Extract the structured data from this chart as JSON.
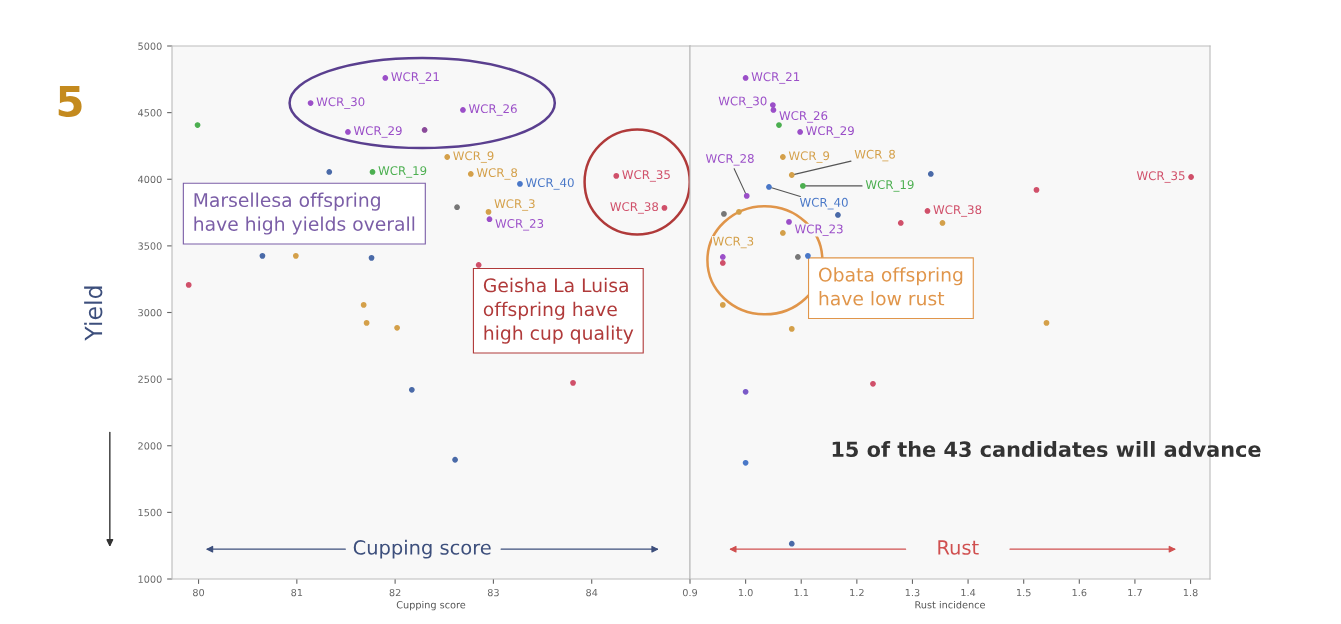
{
  "chart_data": [
    {
      "type": "scatter",
      "xlabel": "Cupping score",
      "ylabel": "Yield",
      "xlim": [
        79.73,
        85.0
      ],
      "xticks": [
        80,
        81,
        82,
        83,
        84
      ],
      "ylim": [
        1000,
        5000
      ],
      "yticks": [
        1000,
        1500,
        2000,
        2500,
        3000,
        3500,
        4000,
        4500,
        5000
      ],
      "marker": "circle",
      "grid": false,
      "legend": false,
      "x": [
        81.9,
        81.14,
        82.69,
        81.52,
        82.3,
        82.53,
        81.77,
        81.33,
        82.77,
        83.27,
        82.95,
        82.96,
        84.25,
        84.74,
        82.63,
        79.99,
        80.65,
        80.99,
        81.76,
        79.9,
        82.85,
        81.68,
        81.71,
        82.02,
        82.17,
        82.61,
        83.81
      ],
      "values": [
        4760,
        4572,
        4520,
        4355,
        4370,
        4167,
        4055,
        4055,
        4040,
        3965,
        3755,
        3700,
        4025,
        3785,
        3790,
        4407,
        3425,
        3425,
        3410,
        3207,
        3357,
        3057,
        2922,
        2885,
        2420,
        1895,
        2472
      ],
      "colors": [
        "#9b4fc8",
        "#9b4fc8",
        "#9b4fc8",
        "#9b4fc8",
        "#8a4a9a",
        "#d4a04a",
        "#4caf50",
        "#4a6aa8",
        "#d4a04a",
        "#4a78c8",
        "#d4a04a",
        "#9b4fc8",
        "#d0506a",
        "#d0506a",
        "#777777",
        "#4caf50",
        "#4a6aa8",
        "#d4a04a",
        "#4a6aa8",
        "#d0506a",
        "#d0506a",
        "#d4a04a",
        "#d4a04a",
        "#d4a04a",
        "#4a6aa8",
        "#4a6aa8",
        "#d0506a"
      ],
      "annotations": [
        "5",
        "Marsellesa offspring\nhave high yields overall",
        "Geisha La Luisa\noffspring have\nhigh cup quality",
        "Cupping score",
        {
          "text": "WCR_21",
          "x": 81.9,
          "y": 4760
        },
        {
          "text": "WCR_30",
          "x": 81.14,
          "y": 4572
        },
        {
          "text": "WCR_26",
          "x": 82.69,
          "y": 4520
        },
        {
          "text": "WCR_29",
          "x": 81.52,
          "y": 4355
        },
        {
          "text": "WCR_9",
          "x": 82.53,
          "y": 4167
        },
        {
          "text": "WCR_19",
          "x": 81.77,
          "y": 4055
        },
        {
          "text": "WCR_8",
          "x": 82.77,
          "y": 4040
        },
        {
          "text": "WCR_40",
          "x": 83.27,
          "y": 3965
        },
        {
          "text": "WCR_3",
          "x": 82.95,
          "y": 3755
        },
        {
          "text": "WCR_23",
          "x": 82.96,
          "y": 3700
        },
        {
          "text": "WCR_35",
          "x": 84.25,
          "y": 4025
        },
        {
          "text": "WCR_38",
          "x": 84.74,
          "y": 3785
        }
      ]
    },
    {
      "type": "scatter",
      "xlabel": "Rust incidence",
      "xlim": [
        0.9,
        1.835
      ],
      "xticks": [
        {
          "value": 0.9,
          "label": "0.9"
        },
        {
          "value": 1.0,
          "label": "1.0"
        },
        {
          "value": 1.1,
          "label": "1.1"
        },
        {
          "value": 1.2,
          "label": "1.2"
        },
        {
          "value": 1.3,
          "label": "1.3"
        },
        {
          "value": 1.4,
          "label": "1.4"
        },
        {
          "value": 1.5,
          "label": "1.5"
        },
        {
          "value": 1.6,
          "label": "1.6"
        },
        {
          "value": 1.7,
          "label": "1.7"
        },
        {
          "value": 1.8,
          "label": "1.8"
        }
      ],
      "ylim": [
        1000,
        5000
      ],
      "tick_labels": "x",
      "marker": "circle",
      "grid": false,
      "legend": false,
      "x": [
        1.0,
        1.049,
        1.05,
        1.06,
        1.098,
        1.002,
        1.067,
        1.083,
        1.103,
        1.042,
        0.988,
        0.961,
        1.078,
        1.166,
        1.067,
        1.094,
        1.112,
        0.959,
        0.959,
        1.333,
        1.523,
        1.801,
        1.327,
        1.279,
        1.354,
        0.959,
        1.083,
        1.541,
        1.0,
        1.229,
        1.0,
        1.083
      ],
      "values": [
        4760,
        4557,
        4520,
        4407,
        4355,
        3875,
        4167,
        4032,
        3950,
        3942,
        3755,
        3740,
        3680,
        3732,
        3597,
        3417,
        3425,
        3417,
        3372,
        4040,
        3920,
        4017,
        3762,
        3672,
        3672,
        3057,
        2877,
        2922,
        2405,
        2465,
        1872,
        1265
      ],
      "colors": [
        "#9b4fc8",
        "#9b4fc8",
        "#9b4fc8",
        "#4caf50",
        "#9b4fc8",
        "#9b4fc8",
        "#d4a04a",
        "#d4a04a",
        "#4caf50",
        "#4a78c8",
        "#d4a04a",
        "#777777",
        "#9b4fc8",
        "#4a6aa8",
        "#d4a04a",
        "#777777",
        "#4a78c8",
        "#9b4fc8",
        "#d0506a",
        "#4a6aa8",
        "#d0506a",
        "#d0506a",
        "#d0506a",
        "#d0506a",
        "#d4a04a",
        "#d4a04a",
        "#d4a04a",
        "#d4a04a",
        "#7a5ac8",
        "#d0506a",
        "#4a78c8",
        "#4a6aa8"
      ],
      "annotations": [
        "Obata offspring\nhave low rust",
        "Rust",
        "15 of the 43 candidates will advance",
        {
          "text": "WCR_21",
          "x": 1.0,
          "y": 4760
        },
        {
          "text": "WCR_30",
          "x": 1.049,
          "y": 4557
        },
        {
          "text": "WCR_26",
          "x": 1.05,
          "y": 4520
        },
        {
          "text": "WCR_29",
          "x": 1.098,
          "y": 4355
        },
        {
          "text": "WCR_28",
          "x": 1.002,
          "y": 3875
        },
        {
          "text": "WCR_9",
          "x": 1.067,
          "y": 4167
        },
        {
          "text": "WCR_8",
          "x": 1.083,
          "y": 4032
        },
        {
          "text": "WCR_19",
          "x": 1.103,
          "y": 3950
        },
        {
          "text": "WCR_40",
          "x": 1.042,
          "y": 3942
        },
        {
          "text": "WCR_3",
          "x": 0.988,
          "y": 3755
        },
        {
          "text": "WCR_23",
          "x": 1.078,
          "y": 3680
        },
        {
          "text": "WCR_35",
          "x": 1.801,
          "y": 4017
        },
        {
          "text": "WCR_38",
          "x": 1.327,
          "y": 3762
        }
      ]
    }
  ]
}
